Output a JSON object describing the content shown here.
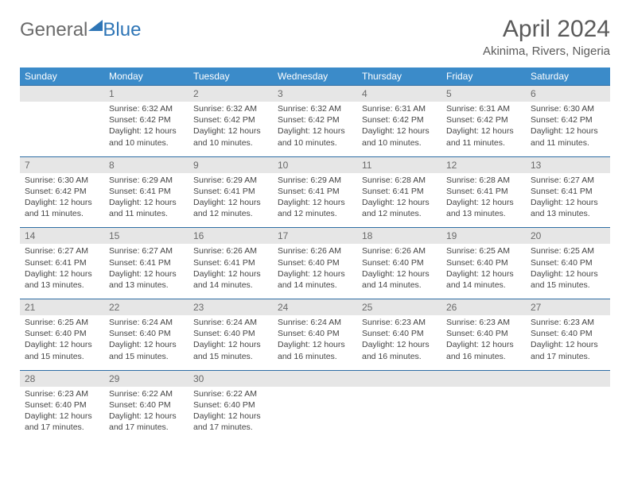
{
  "logo": {
    "general": "General",
    "blue": "Blue"
  },
  "title": "April 2024",
  "location": "Akinima, Rivers, Nigeria",
  "colors": {
    "header_bg": "#3b8bc9",
    "header_text": "#ffffff",
    "daynum_bg": "#e6e6e6",
    "daynum_text": "#6a6a6a",
    "rule": "#2e6da4",
    "logo_gray": "#6a6a6a",
    "logo_blue": "#2e75b6",
    "body_text": "#444444"
  },
  "dow": [
    "Sunday",
    "Monday",
    "Tuesday",
    "Wednesday",
    "Thursday",
    "Friday",
    "Saturday"
  ],
  "weeks": [
    [
      null,
      {
        "n": "1",
        "sr": "Sunrise: 6:32 AM",
        "ss": "Sunset: 6:42 PM",
        "d1": "Daylight: 12 hours",
        "d2": "and 10 minutes."
      },
      {
        "n": "2",
        "sr": "Sunrise: 6:32 AM",
        "ss": "Sunset: 6:42 PM",
        "d1": "Daylight: 12 hours",
        "d2": "and 10 minutes."
      },
      {
        "n": "3",
        "sr": "Sunrise: 6:32 AM",
        "ss": "Sunset: 6:42 PM",
        "d1": "Daylight: 12 hours",
        "d2": "and 10 minutes."
      },
      {
        "n": "4",
        "sr": "Sunrise: 6:31 AM",
        "ss": "Sunset: 6:42 PM",
        "d1": "Daylight: 12 hours",
        "d2": "and 10 minutes."
      },
      {
        "n": "5",
        "sr": "Sunrise: 6:31 AM",
        "ss": "Sunset: 6:42 PM",
        "d1": "Daylight: 12 hours",
        "d2": "and 11 minutes."
      },
      {
        "n": "6",
        "sr": "Sunrise: 6:30 AM",
        "ss": "Sunset: 6:42 PM",
        "d1": "Daylight: 12 hours",
        "d2": "and 11 minutes."
      }
    ],
    [
      {
        "n": "7",
        "sr": "Sunrise: 6:30 AM",
        "ss": "Sunset: 6:42 PM",
        "d1": "Daylight: 12 hours",
        "d2": "and 11 minutes."
      },
      {
        "n": "8",
        "sr": "Sunrise: 6:29 AM",
        "ss": "Sunset: 6:41 PM",
        "d1": "Daylight: 12 hours",
        "d2": "and 11 minutes."
      },
      {
        "n": "9",
        "sr": "Sunrise: 6:29 AM",
        "ss": "Sunset: 6:41 PM",
        "d1": "Daylight: 12 hours",
        "d2": "and 12 minutes."
      },
      {
        "n": "10",
        "sr": "Sunrise: 6:29 AM",
        "ss": "Sunset: 6:41 PM",
        "d1": "Daylight: 12 hours",
        "d2": "and 12 minutes."
      },
      {
        "n": "11",
        "sr": "Sunrise: 6:28 AM",
        "ss": "Sunset: 6:41 PM",
        "d1": "Daylight: 12 hours",
        "d2": "and 12 minutes."
      },
      {
        "n": "12",
        "sr": "Sunrise: 6:28 AM",
        "ss": "Sunset: 6:41 PM",
        "d1": "Daylight: 12 hours",
        "d2": "and 13 minutes."
      },
      {
        "n": "13",
        "sr": "Sunrise: 6:27 AM",
        "ss": "Sunset: 6:41 PM",
        "d1": "Daylight: 12 hours",
        "d2": "and 13 minutes."
      }
    ],
    [
      {
        "n": "14",
        "sr": "Sunrise: 6:27 AM",
        "ss": "Sunset: 6:41 PM",
        "d1": "Daylight: 12 hours",
        "d2": "and 13 minutes."
      },
      {
        "n": "15",
        "sr": "Sunrise: 6:27 AM",
        "ss": "Sunset: 6:41 PM",
        "d1": "Daylight: 12 hours",
        "d2": "and 13 minutes."
      },
      {
        "n": "16",
        "sr": "Sunrise: 6:26 AM",
        "ss": "Sunset: 6:41 PM",
        "d1": "Daylight: 12 hours",
        "d2": "and 14 minutes."
      },
      {
        "n": "17",
        "sr": "Sunrise: 6:26 AM",
        "ss": "Sunset: 6:40 PM",
        "d1": "Daylight: 12 hours",
        "d2": "and 14 minutes."
      },
      {
        "n": "18",
        "sr": "Sunrise: 6:26 AM",
        "ss": "Sunset: 6:40 PM",
        "d1": "Daylight: 12 hours",
        "d2": "and 14 minutes."
      },
      {
        "n": "19",
        "sr": "Sunrise: 6:25 AM",
        "ss": "Sunset: 6:40 PM",
        "d1": "Daylight: 12 hours",
        "d2": "and 14 minutes."
      },
      {
        "n": "20",
        "sr": "Sunrise: 6:25 AM",
        "ss": "Sunset: 6:40 PM",
        "d1": "Daylight: 12 hours",
        "d2": "and 15 minutes."
      }
    ],
    [
      {
        "n": "21",
        "sr": "Sunrise: 6:25 AM",
        "ss": "Sunset: 6:40 PM",
        "d1": "Daylight: 12 hours",
        "d2": "and 15 minutes."
      },
      {
        "n": "22",
        "sr": "Sunrise: 6:24 AM",
        "ss": "Sunset: 6:40 PM",
        "d1": "Daylight: 12 hours",
        "d2": "and 15 minutes."
      },
      {
        "n": "23",
        "sr": "Sunrise: 6:24 AM",
        "ss": "Sunset: 6:40 PM",
        "d1": "Daylight: 12 hours",
        "d2": "and 15 minutes."
      },
      {
        "n": "24",
        "sr": "Sunrise: 6:24 AM",
        "ss": "Sunset: 6:40 PM",
        "d1": "Daylight: 12 hours",
        "d2": "and 16 minutes."
      },
      {
        "n": "25",
        "sr": "Sunrise: 6:23 AM",
        "ss": "Sunset: 6:40 PM",
        "d1": "Daylight: 12 hours",
        "d2": "and 16 minutes."
      },
      {
        "n": "26",
        "sr": "Sunrise: 6:23 AM",
        "ss": "Sunset: 6:40 PM",
        "d1": "Daylight: 12 hours",
        "d2": "and 16 minutes."
      },
      {
        "n": "27",
        "sr": "Sunrise: 6:23 AM",
        "ss": "Sunset: 6:40 PM",
        "d1": "Daylight: 12 hours",
        "d2": "and 17 minutes."
      }
    ],
    [
      {
        "n": "28",
        "sr": "Sunrise: 6:23 AM",
        "ss": "Sunset: 6:40 PM",
        "d1": "Daylight: 12 hours",
        "d2": "and 17 minutes."
      },
      {
        "n": "29",
        "sr": "Sunrise: 6:22 AM",
        "ss": "Sunset: 6:40 PM",
        "d1": "Daylight: 12 hours",
        "d2": "and 17 minutes."
      },
      {
        "n": "30",
        "sr": "Sunrise: 6:22 AM",
        "ss": "Sunset: 6:40 PM",
        "d1": "Daylight: 12 hours",
        "d2": "and 17 minutes."
      },
      null,
      null,
      null,
      null
    ]
  ]
}
